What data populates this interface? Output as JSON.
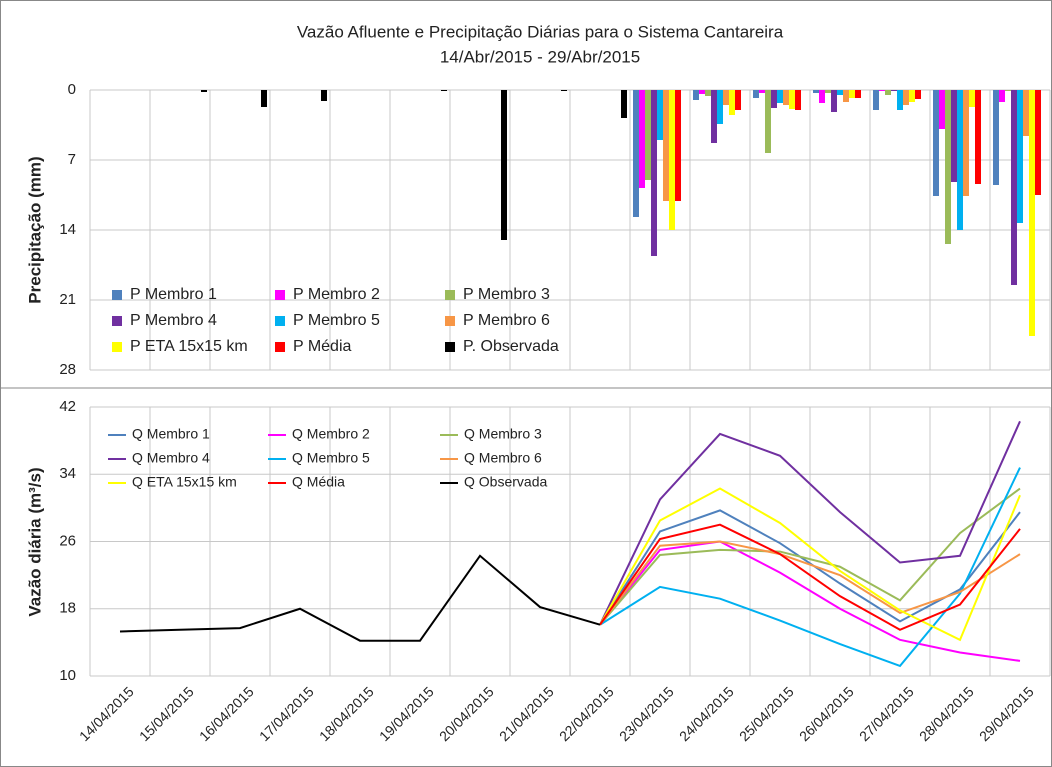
{
  "chart_data": [
    {
      "type": "bar",
      "title": "Vazão Afluente e Precipitação Diárias para o Sistema Cantareira",
      "subtitle": "14/Abr/2015 - 29/Abr/2015",
      "y_label": "Precipitação (mm)",
      "y_inverted": true,
      "categories": [
        "14/04/2015",
        "15/04/2015",
        "16/04/2015",
        "17/04/2015",
        "18/04/2015",
        "19/04/2015",
        "20/04/2015",
        "21/04/2015",
        "22/04/2015",
        "23/04/2015",
        "24/04/2015",
        "25/04/2015",
        "26/04/2015",
        "27/04/2015",
        "28/04/2015",
        "29/04/2015"
      ],
      "ylim": [
        0,
        28
      ],
      "yticks": [
        0,
        7,
        14,
        21,
        28
      ],
      "grid": true,
      "series": [
        {
          "name": "P Membro 1",
          "color": "#4f81bd",
          "values": [
            null,
            null,
            null,
            null,
            null,
            null,
            null,
            null,
            null,
            12.7,
            1.0,
            0.8,
            0.3,
            2.0,
            10.6,
            9.5
          ]
        },
        {
          "name": "P Membro 2",
          "color": "#ff00ff",
          "values": [
            null,
            null,
            null,
            null,
            null,
            null,
            null,
            null,
            null,
            9.8,
            0.4,
            0.3,
            1.3,
            0.1,
            3.9,
            1.2
          ]
        },
        {
          "name": "P Membro 3",
          "color": "#9bbb59",
          "values": [
            null,
            null,
            null,
            null,
            null,
            null,
            null,
            null,
            null,
            9.0,
            0.6,
            6.3,
            0.3,
            0.5,
            15.4,
            0.1
          ]
        },
        {
          "name": "P Membro 4",
          "color": "#7030a0",
          "values": [
            null,
            null,
            null,
            null,
            null,
            null,
            null,
            null,
            null,
            16.6,
            5.3,
            1.8,
            2.2,
            0.1,
            9.2,
            19.5
          ]
        },
        {
          "name": "P Membro 5",
          "color": "#00b0f0",
          "values": [
            null,
            null,
            null,
            null,
            null,
            null,
            null,
            null,
            null,
            5.0,
            3.4,
            1.3,
            0.5,
            2.0,
            14.0,
            13.3
          ]
        },
        {
          "name": "P Membro 6",
          "color": "#f79646",
          "values": [
            null,
            null,
            null,
            null,
            null,
            null,
            null,
            null,
            null,
            11.1,
            1.5,
            1.5,
            1.2,
            1.5,
            10.6,
            4.6
          ]
        },
        {
          "name": "P ETA 15x15 km",
          "color": "#ffff00",
          "values": [
            null,
            null,
            null,
            null,
            null,
            null,
            null,
            null,
            null,
            14.0,
            2.5,
            1.9,
            0.8,
            1.2,
            1.7,
            24.6
          ]
        },
        {
          "name": "P Média",
          "color": "#ff0000",
          "values": [
            null,
            null,
            null,
            null,
            null,
            null,
            null,
            null,
            null,
            11.1,
            2.0,
            2.0,
            0.8,
            0.9,
            9.4,
            10.5
          ]
        },
        {
          "name": "P. Observada",
          "color": "#000000",
          "values": [
            0,
            0.2,
            1.7,
            1.1,
            0,
            0.1,
            15.0,
            0.1,
            2.8,
            0,
            0,
            0,
            0,
            0,
            0,
            0
          ]
        }
      ]
    },
    {
      "type": "line",
      "y_label": "Vazão diária (m³/s)",
      "categories": [
        "14/04/2015",
        "15/04/2015",
        "16/04/2015",
        "17/04/2015",
        "18/04/2015",
        "19/04/2015",
        "20/04/2015",
        "21/04/2015",
        "22/04/2015",
        "23/04/2015",
        "24/04/2015",
        "25/04/2015",
        "26/04/2015",
        "27/04/2015",
        "28/04/2015",
        "29/04/2015"
      ],
      "ylim": [
        10,
        42
      ],
      "yticks": [
        10,
        18,
        26,
        34,
        42
      ],
      "grid": true,
      "series": [
        {
          "name": "Q Membro 1",
          "color": "#4f81bd",
          "values": [
            null,
            null,
            null,
            null,
            null,
            null,
            null,
            null,
            16.1,
            27.2,
            29.7,
            25.8,
            21.0,
            16.5,
            20.3,
            29.5
          ]
        },
        {
          "name": "Q Membro 2",
          "color": "#ff00ff",
          "values": [
            null,
            null,
            null,
            null,
            null,
            null,
            null,
            null,
            16.1,
            25.0,
            26.0,
            22.3,
            18.0,
            14.3,
            12.8,
            11.8
          ]
        },
        {
          "name": "Q Membro 3",
          "color": "#9bbb59",
          "values": [
            null,
            null,
            null,
            null,
            null,
            null,
            null,
            null,
            16.1,
            24.4,
            25.0,
            24.8,
            23.0,
            19.0,
            27.0,
            32.3
          ]
        },
        {
          "name": "Q Membro 4",
          "color": "#7030a0",
          "values": [
            null,
            null,
            null,
            null,
            null,
            null,
            null,
            null,
            16.1,
            31.0,
            38.8,
            36.2,
            29.5,
            23.5,
            24.3,
            40.3
          ]
        },
        {
          "name": "Q Membro 5",
          "color": "#00b0f0",
          "values": [
            null,
            null,
            null,
            null,
            null,
            null,
            null,
            null,
            16.1,
            20.6,
            19.2,
            16.6,
            13.8,
            11.2,
            19.8,
            34.8
          ]
        },
        {
          "name": "Q Membro 6",
          "color": "#f79646",
          "values": [
            null,
            null,
            null,
            null,
            null,
            null,
            null,
            null,
            16.1,
            25.5,
            26.0,
            24.5,
            22.0,
            17.5,
            20.0,
            24.5
          ]
        },
        {
          "name": "Q ETA 15x15 km",
          "color": "#ffff00",
          "values": [
            null,
            null,
            null,
            null,
            null,
            null,
            null,
            null,
            16.1,
            28.5,
            32.3,
            28.2,
            22.5,
            17.8,
            14.3,
            31.5
          ]
        },
        {
          "name": "Q Média",
          "color": "#ff0000",
          "values": [
            null,
            null,
            null,
            null,
            null,
            null,
            null,
            null,
            16.1,
            26.3,
            28.0,
            24.5,
            19.5,
            15.5,
            18.5,
            27.5
          ]
        },
        {
          "name": "Q Observada",
          "color": "#000000",
          "values": [
            15.3,
            15.5,
            15.7,
            18.0,
            14.2,
            14.2,
            24.3,
            18.2,
            16.1,
            null,
            null,
            null,
            null,
            null,
            null,
            null
          ]
        }
      ]
    }
  ]
}
